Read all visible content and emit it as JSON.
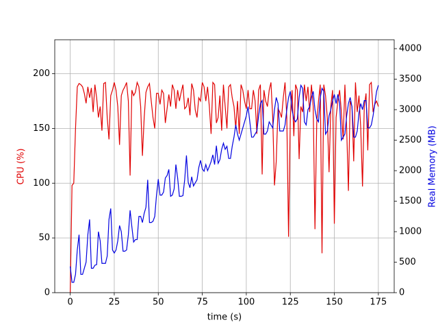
{
  "chart_data": {
    "type": "line",
    "xlabel": "time (s)",
    "ylabel": "CPU (%)",
    "y2label": "Real Memory (MB)",
    "x": [
      0,
      1,
      2,
      3,
      4,
      5,
      6,
      7,
      8,
      9,
      10,
      11,
      12,
      13,
      14,
      15,
      16,
      17,
      18,
      19,
      20,
      21,
      22,
      23,
      24,
      25,
      26,
      27,
      28,
      29,
      30,
      31,
      32,
      33,
      34,
      35,
      36,
      37,
      38,
      39,
      40,
      41,
      42,
      43,
      44,
      45,
      46,
      47,
      48,
      49,
      50,
      51,
      52,
      53,
      54,
      55,
      56,
      57,
      58,
      59,
      60,
      61,
      62,
      63,
      64,
      65,
      66,
      67,
      68,
      69,
      70,
      71,
      72,
      73,
      74,
      75,
      76,
      77,
      78,
      79,
      80,
      81,
      82,
      83,
      84,
      85,
      86,
      87,
      88,
      89,
      90,
      91,
      92,
      93,
      94,
      95,
      96,
      97,
      98,
      99,
      100,
      101,
      102,
      103,
      104,
      105,
      106,
      107,
      108,
      109,
      110,
      111,
      112,
      113,
      114,
      115,
      116,
      117,
      118,
      119,
      120,
      121,
      122,
      123,
      124,
      125,
      126,
      127,
      128,
      129,
      130,
      131,
      132,
      133,
      134,
      135,
      136,
      137,
      138,
      139,
      140,
      141,
      142,
      143,
      144,
      145,
      146,
      147,
      148,
      149,
      150,
      151,
      152,
      153,
      154,
      155,
      156,
      157,
      158,
      159,
      160,
      161,
      162,
      163,
      164,
      165,
      166,
      167,
      168,
      169,
      170,
      171,
      172,
      173,
      174,
      175
    ],
    "series": [
      {
        "name": "CPU (%)",
        "color": "#e00000",
        "axis": "y",
        "values": [
          0,
          98,
          100,
          150,
          188,
          191,
          190,
          188,
          182,
          173,
          188,
          178,
          187,
          165,
          190,
          178,
          160,
          170,
          148,
          191,
          192,
          160,
          140,
          180,
          185,
          192,
          185,
          170,
          135,
          180,
          185,
          188,
          192,
          175,
          107,
          185,
          180,
          183,
          192,
          188,
          170,
          125,
          160,
          183,
          188,
          191,
          175,
          160,
          150,
          182,
          182,
          172,
          185,
          182,
          155,
          168,
          181,
          170,
          190,
          185,
          168,
          185,
          175,
          183,
          190,
          168,
          170,
          178,
          162,
          191,
          185,
          167,
          160,
          178,
          175,
          192,
          188,
          175,
          188,
          170,
          145,
          192,
          190,
          155,
          160,
          180,
          148,
          190,
          170,
          150,
          188,
          190,
          178,
          170,
          150,
          175,
          145,
          190,
          185,
          175,
          168,
          185,
          168,
          168,
          185,
          175,
          145,
          185,
          190,
          108,
          185,
          175,
          170,
          185,
          192,
          160,
          98,
          120,
          168,
          165,
          160,
          178,
          192,
          160,
          51,
          160,
          185,
          143,
          190,
          185,
          122,
          170,
          165,
          190,
          175,
          188,
          165,
          190,
          170,
          58,
          155,
          175,
          190,
          36,
          190,
          180,
          160,
          110,
          170,
          185,
          63,
          160,
          175,
          185,
          165,
          140,
          190,
          150,
          93,
          175,
          170,
          120,
          192,
          165,
          180,
          150,
          97,
          170,
          182,
          130,
          190,
          192,
          165,
          172,
          175,
          170
        ]
      },
      {
        "name": "Real Memory (MB)",
        "color": "#0000e0",
        "axis": "y2",
        "values": [
          430,
          170,
          170,
          300,
          700,
          950,
          300,
          300,
          400,
          500,
          950,
          1200,
          400,
          400,
          450,
          460,
          1000,
          850,
          480,
          480,
          480,
          600,
          1200,
          1380,
          700,
          650,
          700,
          850,
          1100,
          1000,
          680,
          680,
          700,
          950,
          1350,
          1080,
          830,
          870,
          870,
          1250,
          1250,
          1150,
          1300,
          1400,
          1850,
          1150,
          1150,
          1170,
          1250,
          1600,
          1860,
          1600,
          1600,
          1650,
          1880,
          1920,
          2020,
          1580,
          1600,
          1700,
          2100,
          1880,
          1580,
          1580,
          1590,
          1850,
          2250,
          1810,
          1720,
          1900,
          1750,
          1800,
          1850,
          2050,
          2170,
          2030,
          1990,
          2100,
          2000,
          2070,
          2150,
          2260,
          2100,
          2410,
          2120,
          2180,
          2350,
          2450,
          2350,
          2400,
          2200,
          2200,
          2400,
          2550,
          2750,
          2600,
          2500,
          2600,
          2700,
          2800,
          2900,
          3050,
          2800,
          2550,
          2550,
          2600,
          2650,
          2900,
          3100,
          3150,
          2600,
          2600,
          2650,
          2800,
          2750,
          2700,
          3000,
          3200,
          3100,
          2650,
          2650,
          2650,
          2750,
          3000,
          3200,
          3300,
          3000,
          2850,
          2800,
          2850,
          3200,
          3400,
          3350,
          2800,
          2750,
          3000,
          3050,
          3200,
          3300,
          3000,
          2850,
          2800,
          3200,
          3350,
          3300,
          2600,
          2650,
          2900,
          3000,
          3150,
          3250,
          3100,
          3250,
          3100,
          2500,
          2550,
          2600,
          2900,
          3100,
          3200,
          3050,
          2550,
          2550,
          2650,
          2950,
          3100,
          3000,
          3150,
          3150,
          2700,
          2700,
          2750,
          2900,
          3100,
          3300,
          3400
        ]
      }
    ],
    "xlim": [
      -8.8,
      184
    ],
    "xticks": [
      0,
      25,
      50,
      75,
      100,
      125,
      150,
      175
    ],
    "ylim": [
      0,
      231
    ],
    "yticks": [
      0,
      50,
      100,
      150,
      200
    ],
    "y2lim": [
      0,
      4146
    ],
    "y2ticks": [
      0,
      500,
      1000,
      1500,
      2000,
      2500,
      3000,
      3500,
      4000
    ],
    "grid": true
  }
}
